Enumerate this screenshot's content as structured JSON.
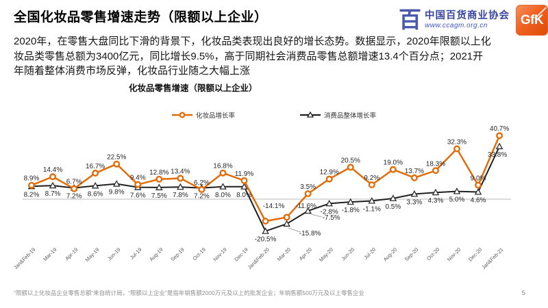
{
  "slide": {
    "title": "全国化妆品零售增速走势（限额以上企业）",
    "body_text": "2020年，在零售大盘同比下滑的背景下，化妆品类表现出良好的增长态势。数据显示，2020年限额以上化妆品类零售总额为3400亿元，同比增长9.5%，高于同期社会消费品零售总额增速13.4个百分点；2021开年随着整体消费市场反弹，化妆品行业随之大幅上涨",
    "footnote": "“限额以上化妆品企业零售总额”来自统计局，“限额以上企业”是指年销售额2000万元及以上的批发企业；年销售额500万元及以上零售企业",
    "page_number": "5"
  },
  "logos": {
    "ccagm": {
      "mark": "百",
      "name": "中国百货商业协会",
      "url": "www.ccagm.org.cn",
      "color": "#3847A0"
    },
    "gfk": {
      "text": "GfK",
      "color": "#EB5B25"
    }
  },
  "chart_data": {
    "type": "line",
    "title": "化妆品零售增速（限额以上企业）",
    "categories": [
      "Jan&Feb-19",
      "Mar-19",
      "Apr-19",
      "May-19",
      "Jun-19",
      "Jul-19",
      "Aug-19",
      "Sep-19",
      "Oct-19",
      "Nov-19",
      "Dec-19",
      "Jan&Feb-20",
      "Mar-20",
      "Apr-20",
      "May-20",
      "Jun-20",
      "Jul-20",
      "Aug-20",
      "Sep-20",
      "Oct-20",
      "Nov-20",
      "Dec-20",
      "Jan&Feb-21"
    ],
    "series": [
      {
        "name": "化妆品增长率",
        "marker": "circle",
        "color": "#E36C0A",
        "values": [
          8.9,
          14.4,
          6.7,
          16.7,
          22.5,
          9.4,
          12.8,
          13.4,
          6.2,
          16.8,
          11.9,
          -14.1,
          -11.6,
          3.5,
          12.9,
          20.5,
          9.2,
          19.0,
          13.7,
          18.3,
          32.3,
          9.0,
          40.7
        ]
      },
      {
        "name": "消费品整体增长率",
        "marker": "triangle",
        "color": "#1F1F1F",
        "values": [
          8.2,
          8.7,
          7.2,
          8.6,
          9.8,
          7.6,
          7.5,
          7.8,
          7.2,
          8.0,
          8.0,
          -20.5,
          -15.8,
          -7.5,
          -2.8,
          -1.8,
          -1.1,
          0.5,
          3.3,
          4.3,
          5.0,
          4.6,
          33.8
        ]
      }
    ],
    "ylim": [
      -25,
      45
    ],
    "value_label_format": "0.0%",
    "zero_line": true,
    "grid": false,
    "legend_position": "top"
  }
}
